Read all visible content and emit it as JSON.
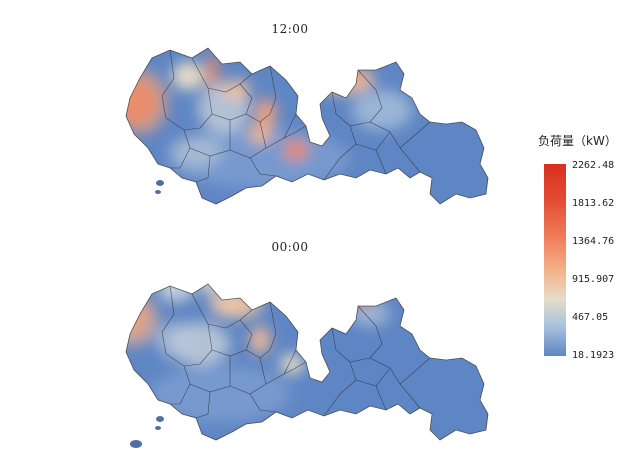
{
  "maps": [
    {
      "id": "noon",
      "title": "12:00"
    },
    {
      "id": "midnight",
      "title": "00:00"
    }
  ],
  "legend": {
    "title": "负荷量（kW）",
    "ticks": [
      "2262.48",
      "1813.62",
      "1364.76",
      "915.907",
      "467.05",
      "18.1923"
    ],
    "min": 18.1923,
    "max": 2262.48,
    "color_low": "#5f86c4",
    "color_mid": "#e8dcc6",
    "color_high": "#d7301f"
  }
}
